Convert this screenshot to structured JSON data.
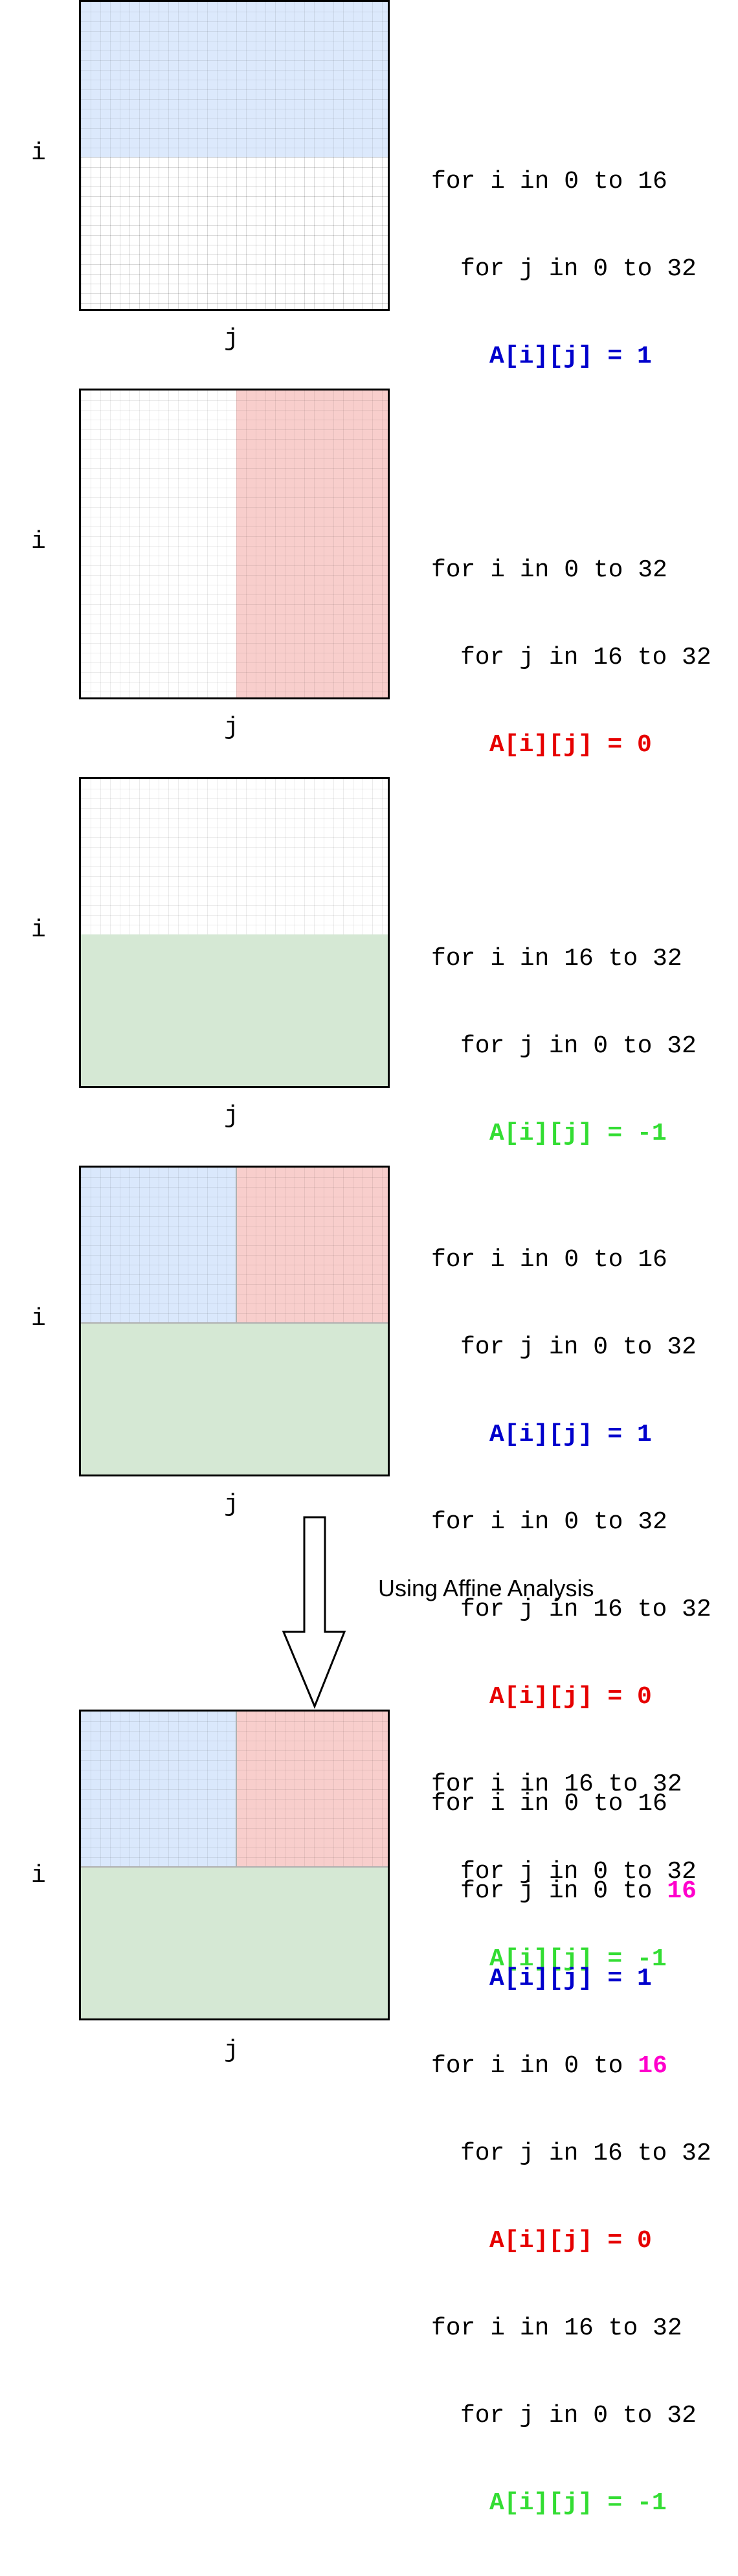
{
  "axis_labels": {
    "i": "i",
    "j": "j"
  },
  "panels": [
    {
      "code": [
        {
          "indent": 0,
          "text": "for i in 0 to 16"
        },
        {
          "indent": 1,
          "text": "for j in 0 to 32"
        },
        {
          "indent": 2,
          "text": "A[i][j] = 1",
          "color": "#0000cc"
        }
      ]
    },
    {
      "code": [
        {
          "indent": 0,
          "text": "for i in 0 to 32"
        },
        {
          "indent": 1,
          "text": "for j in 16 to 32"
        },
        {
          "indent": 2,
          "text": "A[i][j] = 0",
          "color": "#e60000"
        }
      ]
    },
    {
      "code": [
        {
          "indent": 0,
          "text": "for i in 16 to 32"
        },
        {
          "indent": 1,
          "text": "for j in 0 to 32"
        },
        {
          "indent": 2,
          "text": "A[i][j] = -1",
          "color": "#33dd33"
        }
      ]
    },
    {
      "code": [
        {
          "indent": 0,
          "text": "for i in 0 to 16"
        },
        {
          "indent": 1,
          "text": "for j in 0 to 32"
        },
        {
          "indent": 2,
          "text": "A[i][j] = 1",
          "color": "#0000cc"
        },
        {
          "indent": 0,
          "text": "for i in 0 to 32"
        },
        {
          "indent": 1,
          "text": "for j in 16 to 32"
        },
        {
          "indent": 2,
          "text": "A[i][j] = 0",
          "color": "#e60000"
        },
        {
          "indent": 0,
          "text": "for i in 16 to 32"
        },
        {
          "indent": 1,
          "text": "for j in 0 to 32"
        },
        {
          "indent": 2,
          "text": "A[i][j] = -1",
          "color": "#33dd33"
        }
      ]
    },
    {
      "code": [
        {
          "indent": 0,
          "text": "for i in 0 to 16"
        },
        {
          "indent": 1,
          "text_prefix": "for j in 0 to ",
          "highlight": "16"
        },
        {
          "indent": 2,
          "text": "A[i][j] = 1",
          "color": "#0000cc"
        },
        {
          "indent": 0,
          "text_prefix": "for i in 0 to ",
          "highlight": "16"
        },
        {
          "indent": 1,
          "text": "for j in 16 to 32"
        },
        {
          "indent": 2,
          "text": "A[i][j] = 0",
          "color": "#e60000"
        },
        {
          "indent": 0,
          "text": "for i in 16 to 32"
        },
        {
          "indent": 1,
          "text": "for j in 0 to 32"
        },
        {
          "indent": 2,
          "text": "A[i][j] = -1",
          "color": "#33dd33"
        }
      ]
    }
  ],
  "transform_label": "Using Affine Analysis",
  "colors": {
    "blue_region": "#dae8fc",
    "red_region": "#f8cecc",
    "green_region": "#d5e8d4",
    "highlight": "#ff00cc"
  }
}
